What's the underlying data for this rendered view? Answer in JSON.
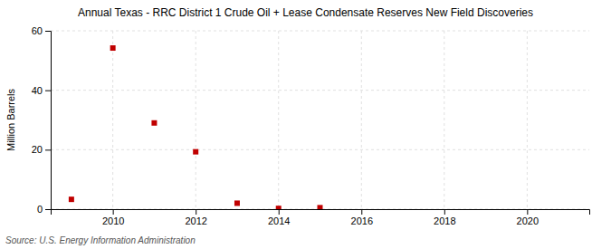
{
  "chart_data": {
    "type": "scatter",
    "title": "Annual Texas - RRC District 1 Crude Oil + Lease Condensate Reserves New Field Discoveries",
    "ylabel": "Million Barrels",
    "source": "Source: U.S. Energy Information Administration",
    "x": [
      2009,
      2010,
      2011,
      2012,
      2013,
      2014,
      2015
    ],
    "values": [
      3.3,
      54.2,
      29.0,
      19.3,
      2.0,
      0.25,
      0.5
    ],
    "color": "#c00000",
    "marker": "square",
    "xlim": [
      2008.5,
      2021.5
    ],
    "ylim": [
      0,
      60
    ],
    "xticks": [
      2010,
      2012,
      2014,
      2016,
      2018,
      2020
    ],
    "yticks": [
      0,
      20,
      40,
      60
    ],
    "grid": true
  }
}
